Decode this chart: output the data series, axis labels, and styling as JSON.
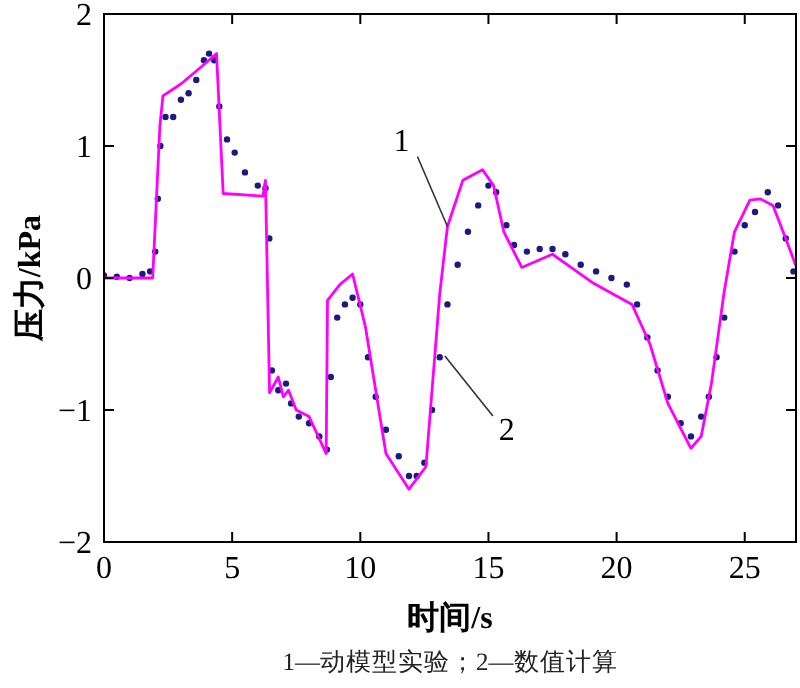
{
  "chart_data": {
    "type": "line",
    "xlabel": "时间/s",
    "ylabel": "压力/kPa",
    "xlim": [
      0,
      27
    ],
    "ylim": [
      -2,
      2
    ],
    "xticks": [
      0,
      5,
      10,
      15,
      20,
      25
    ],
    "yticks": [
      -2,
      -1,
      0,
      1,
      2
    ],
    "grid": false,
    "series": [
      {
        "type": "scatter",
        "color": "#1a1a80",
        "x": [
          0,
          0.5,
          1,
          1.5,
          1.8,
          2.0,
          2.1,
          2.2,
          2.4,
          2.7,
          3.0,
          3.3,
          3.6,
          3.9,
          4.1,
          4.3,
          4.5,
          4.8,
          5.1,
          5.5,
          6.0,
          6.3,
          6.45,
          6.55,
          6.8,
          7.1,
          7.3,
          7.6,
          8.0,
          8.4,
          8.7,
          8.85,
          9.1,
          9.4,
          9.7,
          10.0,
          10.3,
          10.6,
          11.0,
          11.5,
          11.9,
          12.2,
          12.5,
          12.8,
          13.1,
          13.4,
          13.8,
          14.2,
          14.6,
          15.0,
          15.3,
          15.7,
          16.0,
          16.5,
          17.0,
          17.5,
          18.0,
          18.6,
          19.2,
          19.8,
          20.4,
          20.8,
          21.2,
          21.6,
          22.0,
          22.5,
          22.9,
          23.3,
          23.6,
          23.9,
          24.2,
          24.6,
          25.0,
          25.4,
          25.9,
          26.3,
          26.6,
          26.9
        ],
        "values": [
          0.02,
          0.01,
          0.0,
          0.03,
          0.05,
          0.2,
          0.6,
          1.0,
          1.22,
          1.22,
          1.35,
          1.4,
          1.5,
          1.65,
          1.7,
          1.65,
          1.3,
          1.05,
          0.95,
          0.8,
          0.7,
          0.68,
          0.3,
          -0.7,
          -0.85,
          -0.8,
          -0.95,
          -1.05,
          -1.1,
          -1.2,
          -1.3,
          -0.75,
          -0.3,
          -0.2,
          -0.15,
          -0.2,
          -0.6,
          -0.9,
          -1.15,
          -1.35,
          -1.5,
          -1.5,
          -1.4,
          -1.0,
          -0.6,
          -0.2,
          0.1,
          0.35,
          0.55,
          0.7,
          0.65,
          0.4,
          0.25,
          0.2,
          0.22,
          0.22,
          0.18,
          0.1,
          0.05,
          0.0,
          -0.05,
          -0.2,
          -0.45,
          -0.7,
          -0.9,
          -1.1,
          -1.2,
          -1.05,
          -0.9,
          -0.6,
          -0.3,
          0.2,
          0.4,
          0.5,
          0.65,
          0.55,
          0.3,
          0.05
        ]
      },
      {
        "type": "line",
        "color": "#ff00ff",
        "x": [
          0,
          1.9,
          2.18,
          2.3,
          3.0,
          3.8,
          4.39,
          4.65,
          6.2,
          6.3,
          6.46,
          6.8,
          7.0,
          7.2,
          7.5,
          8.0,
          8.67,
          8.72,
          9.2,
          9.7,
          10.2,
          11.0,
          11.9,
          12.56,
          13.1,
          13.4,
          14.0,
          14.77,
          15.2,
          15.6,
          16.3,
          17.5,
          19.1,
          20.6,
          21.3,
          22.0,
          22.9,
          23.3,
          23.7,
          24.2,
          24.6,
          25.2,
          25.6,
          26.1,
          26.6,
          27
        ],
        "values": [
          0,
          0,
          1.15,
          1.38,
          1.47,
          1.6,
          1.7,
          0.64,
          0.62,
          0.74,
          -0.87,
          -0.75,
          -0.9,
          -0.85,
          -1.0,
          -1.05,
          -1.33,
          -0.17,
          -0.05,
          0.03,
          -0.37,
          -1.33,
          -1.6,
          -1.43,
          -0.12,
          0.39,
          0.74,
          0.82,
          0.7,
          0.35,
          0.08,
          0.18,
          -0.04,
          -0.2,
          -0.5,
          -0.95,
          -1.29,
          -1.2,
          -0.8,
          -0.1,
          0.35,
          0.59,
          0.6,
          0.55,
          0.3,
          0.09
        ]
      }
    ],
    "annotations": [
      {
        "text": "1",
        "x": 13.4,
        "y": 0.39
      },
      {
        "text": "2",
        "x": 13.3,
        "y": -0.59
      },
      "1—动模型实验；2—数值计算"
    ]
  }
}
